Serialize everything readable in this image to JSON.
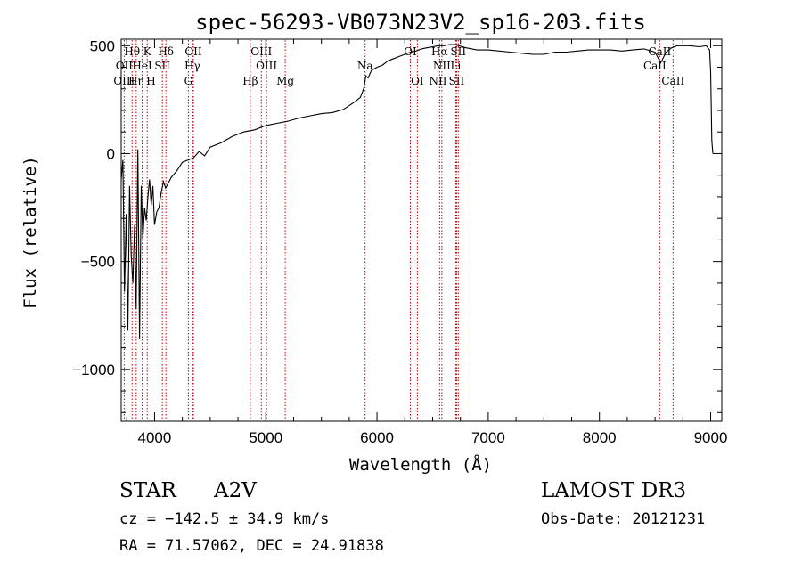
{
  "chart_data": {
    "type": "line",
    "title": "spec-56293-VB073N23V2_sp16-203.fits",
    "xlabel": "Wavelength (Å)",
    "ylabel": "Flux (relative)",
    "xlim": [
      3700,
      9100
    ],
    "ylim": [
      -1240,
      530
    ],
    "xticks": [
      4000,
      5000,
      6000,
      7000,
      8000,
      9000
    ],
    "xtick_labels": [
      "4000",
      "5000",
      "6000",
      "7000",
      "8000",
      "9000"
    ],
    "yticks": [
      -1000,
      -500,
      0,
      500
    ],
    "ytick_labels": [
      "−1000",
      "−500",
      "0",
      "500"
    ],
    "series": [
      {
        "name": "spectrum",
        "x": [
          3700,
          3715,
          3730,
          3745,
          3760,
          3775,
          3790,
          3805,
          3820,
          3835,
          3850,
          3865,
          3880,
          3895,
          3910,
          3925,
          3940,
          3955,
          3970,
          3985,
          4000,
          4020,
          4040,
          4060,
          4080,
          4100,
          4150,
          4200,
          4250,
          4300,
          4350,
          4400,
          4450,
          4500,
          4600,
          4700,
          4800,
          4900,
          5000,
          5100,
          5200,
          5300,
          5400,
          5500,
          5600,
          5700,
          5800,
          5850,
          5880,
          5900,
          5920,
          5950,
          6000,
          6050,
          6100,
          6150,
          6200,
          6250,
          6300,
          6350,
          6400,
          6450,
          6500,
          6550,
          6600,
          6650,
          6700,
          6800,
          6900,
          7000,
          7100,
          7200,
          7300,
          7400,
          7500,
          7600,
          7700,
          7800,
          7900,
          8000,
          8100,
          8200,
          8300,
          8400,
          8500,
          8550,
          8600,
          8650,
          8700,
          8800,
          8900,
          8960,
          8990,
          9000,
          9010,
          9020
        ],
        "y": [
          -120,
          -30,
          -640,
          -280,
          -820,
          -150,
          -470,
          -600,
          -330,
          -720,
          20,
          -860,
          -150,
          -400,
          -250,
          -310,
          -200,
          -120,
          -240,
          -150,
          -330,
          -270,
          -250,
          -180,
          -130,
          -160,
          -110,
          -80,
          -40,
          -30,
          -20,
          10,
          -10,
          30,
          50,
          80,
          100,
          110,
          130,
          140,
          150,
          165,
          175,
          185,
          190,
          205,
          240,
          260,
          300,
          360,
          350,
          385,
          400,
          410,
          430,
          440,
          450,
          460,
          470,
          475,
          485,
          490,
          495,
          500,
          500,
          505,
          505,
          490,
          480,
          480,
          475,
          470,
          465,
          460,
          460,
          470,
          470,
          475,
          480,
          480,
          480,
          475,
          480,
          485,
          470,
          420,
          470,
          490,
          500,
          500,
          495,
          500,
          480,
          380,
          60,
          0
        ]
      }
    ],
    "annotations": [
      {
        "label": "Hθ",
        "x": 3798,
        "row": 1,
        "guide": true
      },
      {
        "label": "K",
        "x": 3934,
        "row": 1,
        "guide": true
      },
      {
        "label": "Hδ",
        "x": 4102,
        "row": 1,
        "guide": true
      },
      {
        "label": "OII",
        "x": 4349,
        "row": 1,
        "guide": true
      },
      {
        "label": "OIII",
        "x": 4960,
        "row": 1,
        "guide": true
      },
      {
        "label": "OI",
        "x": 6300,
        "row": 1,
        "guide": true
      },
      {
        "label": "Hα",
        "x": 6563,
        "row": 1,
        "guide": true
      },
      {
        "label": "SII",
        "x": 6731,
        "row": 1,
        "guide": true
      },
      {
        "label": "CaII",
        "x": 8542,
        "row": 1,
        "guide": true
      },
      {
        "label": "OII",
        "x": 3727,
        "row": 2,
        "guide": true
      },
      {
        "label": "HeI",
        "x": 3889,
        "row": 2,
        "guide": true
      },
      {
        "label": "SII",
        "x": 4070,
        "row": 2,
        "guide": true
      },
      {
        "label": "Hγ",
        "x": 4340,
        "row": 2,
        "guide": true
      },
      {
        "label": "OIII",
        "x": 5007,
        "row": 2,
        "guide": true
      },
      {
        "label": "Na",
        "x": 5893,
        "row": 2,
        "guide": true
      },
      {
        "label": "NII",
        "x": 6583,
        "row": 2,
        "guide": true
      },
      {
        "label": "Li",
        "x": 6708,
        "row": 2,
        "guide": true
      },
      {
        "label": "CaII",
        "x": 8498,
        "row": 2,
        "guide": false
      },
      {
        "label": "OIII",
        "x": 3727,
        "row": 3,
        "guide": false
      },
      {
        "label": "Hη",
        "x": 3835,
        "row": 3,
        "guide": true
      },
      {
        "label": "H",
        "x": 3968,
        "row": 3,
        "guide": true
      },
      {
        "label": "G",
        "x": 4304,
        "row": 3,
        "guide": true
      },
      {
        "label": "Hβ",
        "x": 4861,
        "row": 3,
        "guide": true
      },
      {
        "label": "Mg",
        "x": 5175,
        "row": 3,
        "guide": true
      },
      {
        "label": "OI",
        "x": 6363,
        "row": 3,
        "guide": true
      },
      {
        "label": "NII",
        "x": 6548,
        "row": 3,
        "guide": true
      },
      {
        "label": "SII",
        "x": 6716,
        "row": 3,
        "guide": true
      },
      {
        "label": "CaII",
        "x": 8662,
        "row": 3,
        "guide": true
      }
    ]
  },
  "info": {
    "object_class": "STAR",
    "subclass": "A2V",
    "survey": "LAMOST DR3",
    "cz": "cz = −142.5 ± 34.9 km/s",
    "obs_date": "Obs-Date: 20121231",
    "radec": "RA =  71.57062, DEC =  24.91838"
  },
  "colors": {
    "spectrum": "#000000",
    "guide_line": "#c00000",
    "axis": "#000000",
    "background": "#ffffff"
  }
}
